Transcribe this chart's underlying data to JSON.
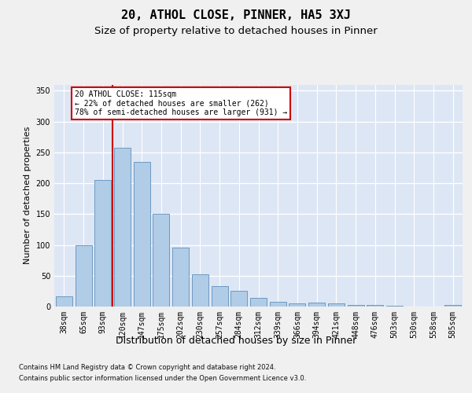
{
  "title": "20, ATHOL CLOSE, PINNER, HA5 3XJ",
  "subtitle": "Size of property relative to detached houses in Pinner",
  "xlabel": "Distribution of detached houses by size in Pinner",
  "ylabel": "Number of detached properties",
  "footer_line1": "Contains HM Land Registry data © Crown copyright and database right 2024.",
  "footer_line2": "Contains public sector information licensed under the Open Government Licence v3.0.",
  "bar_values": [
    17,
    100,
    205,
    258,
    235,
    150,
    95,
    52,
    33,
    25,
    14,
    8,
    5,
    6,
    5,
    2,
    3,
    1,
    0,
    0,
    2
  ],
  "bar_labels": [
    "38sqm",
    "65sqm",
    "93sqm",
    "120sqm",
    "147sqm",
    "175sqm",
    "202sqm",
    "230sqm",
    "257sqm",
    "284sqm",
    "312sqm",
    "339sqm",
    "366sqm",
    "394sqm",
    "421sqm",
    "448sqm",
    "476sqm",
    "503sqm",
    "530sqm",
    "558sqm",
    "585sqm"
  ],
  "bar_color": "#b0cce6",
  "bar_edge_color": "#6090bb",
  "background_color": "#dde6f4",
  "grid_color": "#ffffff",
  "property_line_color": "#cc0000",
  "annotation_text": "20 ATHOL CLOSE: 115sqm\n← 22% of detached houses are smaller (262)\n78% of semi-detached houses are larger (931) →",
  "annotation_box_color": "#ffffff",
  "annotation_box_edge_color": "#cc0000",
  "ylim": [
    0,
    360
  ],
  "yticks": [
    0,
    50,
    100,
    150,
    200,
    250,
    300,
    350
  ],
  "title_fontsize": 11,
  "subtitle_fontsize": 9.5,
  "xlabel_fontsize": 9,
  "ylabel_fontsize": 8,
  "tick_fontsize": 7,
  "footer_fontsize": 6,
  "annotation_fontsize": 7,
  "fig_bg_color": "#f0f0f0",
  "property_line_x": 2.5
}
